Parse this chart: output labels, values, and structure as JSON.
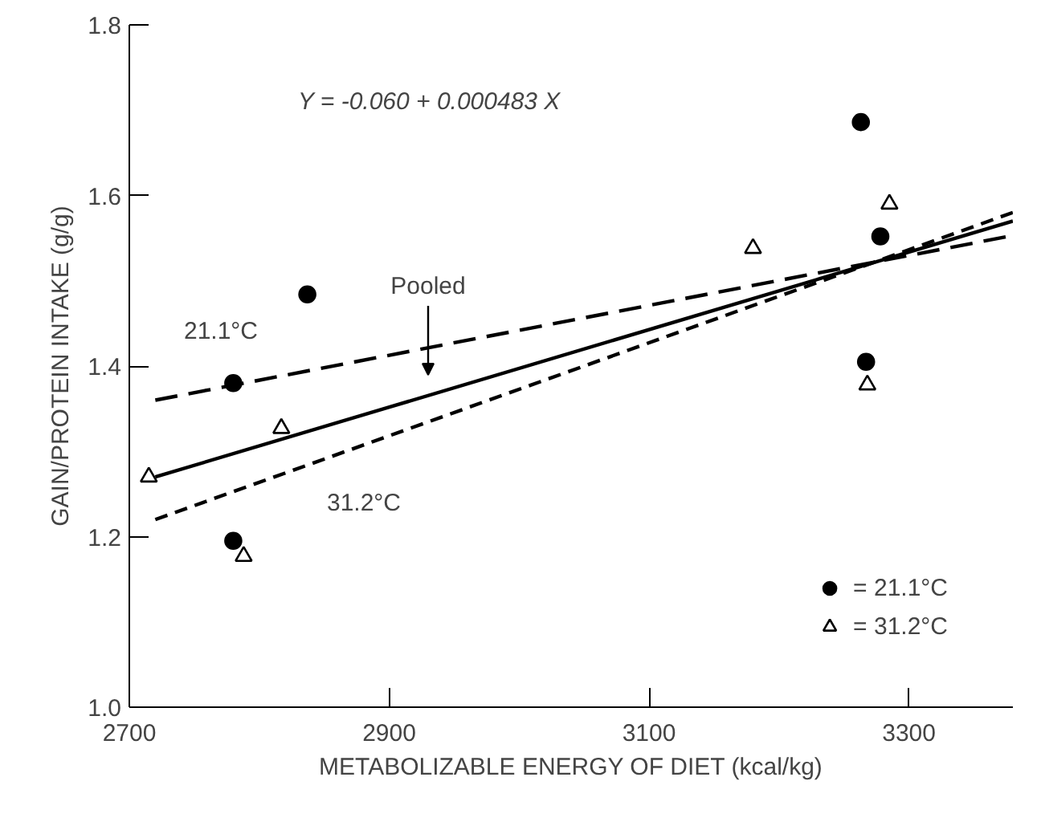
{
  "chart_data": {
    "type": "scatter",
    "xlabel": "METABOLIZABLE ENERGY OF DIET (kcal/kg)",
    "ylabel": "GAIN/PROTEIN INTAKE (g/g)",
    "xlim": [
      2700,
      3380
    ],
    "xticks": [
      2700,
      2900,
      3100,
      3300
    ],
    "ylim": [
      1.0,
      1.8
    ],
    "yticks": [
      {
        "value": 1.0,
        "label": "1.0"
      },
      1.2,
      1.4,
      1.6,
      1.8
    ],
    "grid": false,
    "legend": "bottom right",
    "series": [
      {
        "name": "= 21.1°C",
        "color": "#000000",
        "marker": "circle",
        "x": [
          2780,
          2837,
          2780,
          3263,
          3278,
          3267
        ],
        "values": [
          1.38,
          1.484,
          1.195,
          1.686,
          1.552,
          1.405
        ]
      },
      {
        "name": "= 31.2°C",
        "color": "#000000",
        "marker": "triangle",
        "x": [
          2715,
          2817,
          2788,
          3180,
          3285,
          3268
        ],
        "values": [
          1.27,
          1.327,
          1.177,
          1.538,
          1.59,
          1.378
        ]
      },
      {
        "type": "line",
        "line_style": "dashed",
        "color": "#000000",
        "x": [
          2720,
          3380
        ],
        "values": [
          1.36,
          1.553
        ]
      },
      {
        "type": "line",
        "line_style": "dashed",
        "color": "#000000",
        "x": [
          2720,
          3380
        ],
        "values": [
          1.22,
          1.58
        ]
      },
      {
        "type": "line",
        "line_style": "solid",
        "color": "#000000",
        "x": [
          2720,
          3380
        ],
        "values": [
          1.27,
          1.57
        ]
      }
    ],
    "annotations": [
      "Y = -0.060 + 0.000483 X",
      "21.1°C",
      "31.2°C",
      "Pooled"
    ]
  }
}
